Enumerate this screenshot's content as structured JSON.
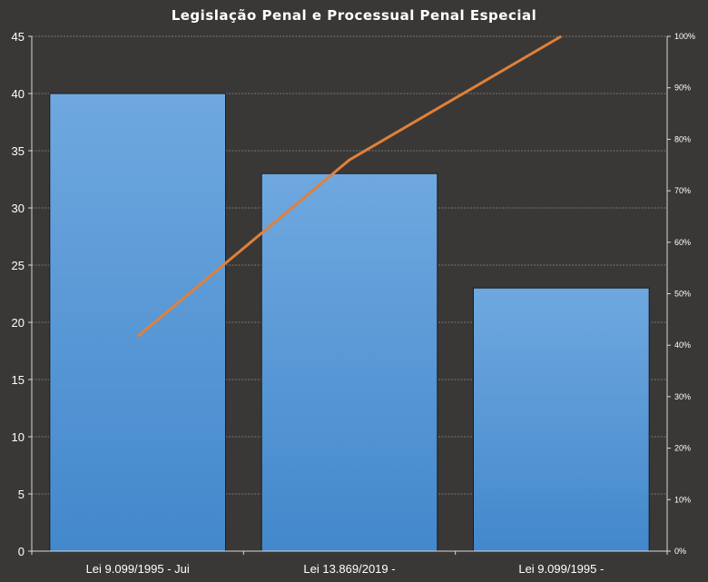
{
  "chart_data": {
    "type": "bar",
    "title": "Legislação Penal e Processual Penal Especial",
    "xlabel": "",
    "ylabel": "",
    "categories": [
      "Lei 9.099/1995 - Jui",
      "Lei 13.869/2019 -",
      "Lei 9.099/1995 -"
    ],
    "series": [
      {
        "type": "bar",
        "values": [
          40,
          33,
          23
        ],
        "color": "#5b9bd5"
      },
      {
        "type": "line",
        "axis": "right",
        "values": [
          41.7,
          76.0,
          100.0
        ],
        "color": "#e0803a"
      }
    ],
    "ylim": [
      0,
      45
    ],
    "yticks": [
      "0",
      "5",
      "10",
      "15",
      "20",
      "25",
      "30",
      "35",
      "40",
      "45"
    ],
    "y2lim": [
      0,
      100
    ],
    "y2ticks": [
      "0%",
      "10%",
      "20%",
      "30%",
      "40%",
      "50%",
      "60%",
      "70%",
      "80%",
      "90%",
      "100%"
    ],
    "grid": true,
    "legend": "none"
  },
  "colors": {
    "background": "#3a3836",
    "bar_top": "#6fa8df",
    "bar_bottom": "#4a8ad0",
    "line": "#e0803a"
  }
}
